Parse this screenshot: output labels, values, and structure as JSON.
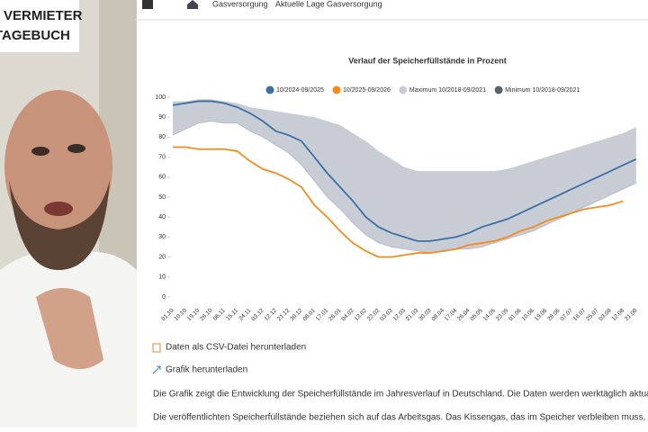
{
  "overlay": {
    "logo": [
      "VERMIETER",
      "TAGEBUCH"
    ]
  },
  "breadcrumb": [
    "Gasversorgung",
    "Aktuelle Lage Gasversorgung"
  ],
  "chart_data": {
    "type": "line",
    "title": "Verlauf der Speicherfüllstände in Prozent",
    "categories": [
      "01.10",
      "10.10",
      "19.10",
      "28.10",
      "06.11",
      "15.11",
      "24.11",
      "03.12",
      "12.12",
      "21.12",
      "30.12",
      "08.01",
      "17.01",
      "26.01",
      "04.02",
      "13.02",
      "22.02",
      "03.03",
      "12.03",
      "21.03",
      "30.03",
      "08.04",
      "17.04",
      "26.04",
      "05.05",
      "14.05",
      "23.05",
      "01.06",
      "10.06",
      "19.06",
      "28.06",
      "07.07",
      "16.07",
      "25.07",
      "03.08",
      "12.08",
      "21.08"
    ],
    "series": [
      {
        "name": "10/2024-09/2025",
        "color": "#3d6fa5",
        "values": [
          96,
          97,
          98,
          98,
          97,
          95,
          92,
          88,
          83,
          81,
          78,
          70,
          62,
          55,
          48,
          40,
          35,
          32,
          30,
          28,
          28,
          29,
          30,
          32,
          35,
          37,
          39,
          42,
          45,
          48,
          51,
          54,
          57,
          60,
          63,
          66,
          69
        ]
      },
      {
        "name": "10/2025-09/2026",
        "color": "#f28c1e",
        "values": [
          75,
          75,
          74,
          74,
          74,
          73,
          68,
          64,
          62,
          59,
          55,
          46,
          40,
          33,
          27,
          23,
          20,
          20,
          21,
          22,
          22,
          23,
          24,
          26,
          27,
          28,
          30,
          33,
          35,
          38,
          40,
          42,
          44,
          45,
          46,
          48,
          null
        ]
      },
      {
        "name": "Maximum 10/2018-09/2021",
        "color": "#c8ccd4",
        "values": [
          98,
          98,
          99,
          99,
          98,
          97,
          95,
          94,
          93,
          92,
          91,
          90,
          88,
          86,
          82,
          78,
          73,
          69,
          65,
          63,
          63,
          63,
          63,
          63,
          63,
          63,
          64,
          66,
          68,
          70,
          72,
          74,
          76,
          78,
          80,
          82,
          85
        ]
      },
      {
        "name": "Minimum 10/2018-09/2021",
        "color": "#5a6270",
        "values": [
          81,
          84,
          87,
          88,
          87,
          87,
          83,
          80,
          76,
          72,
          66,
          58,
          50,
          44,
          37,
          31,
          27,
          25,
          24,
          23,
          22,
          23,
          24,
          24,
          25,
          27,
          29,
          31,
          33,
          36,
          39,
          42,
          45,
          48,
          51,
          54,
          57
        ]
      }
    ],
    "ylim": [
      0,
      100
    ],
    "yticks": [
      0,
      10,
      20,
      30,
      40,
      50,
      60,
      70,
      80,
      90,
      100
    ],
    "grid": false
  },
  "links": [
    "Daten als CSV-Datei herunterladen",
    "Grafik herunterladen"
  ],
  "paragraphs": [
    "Die Grafik zeigt die Entwicklung der Speicherfüllstände im Jahresverlauf in Deutschland. Die Daten werden werktäglich aktualisiert.",
    "Die veröffentlichten Speicherfüllstände beziehen sich auf das Arbeitsgas. Das Kissengas, das im Speicher verbleiben muss, wird bei der Berechnung nicht berücksichtigt."
  ]
}
